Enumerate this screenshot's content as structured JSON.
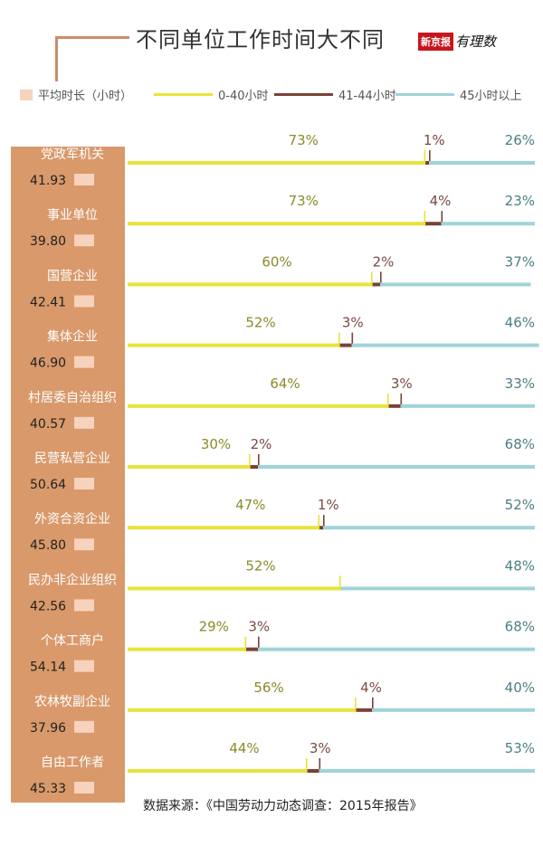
{
  "header": {
    "title": "不同单位工作时间大不同",
    "brand_red": "新京报",
    "brand_script": "有理数"
  },
  "legend": {
    "avg": "平均时长（小时）",
    "s1": "0-40小时",
    "s2": "41-44小时",
    "s3": "45小时以上"
  },
  "colors": {
    "s1": "#e8e33a",
    "s2": "#7a4136",
    "s3": "#9fd3d8",
    "sidebar": "#d9996b",
    "avg_box": "#f7d2bc",
    "text_s1": "#8b8a2a",
    "text_s2": "#7a4a45",
    "text_s3": "#4c7f82"
  },
  "chart_data": {
    "type": "bar",
    "orientation": "horizontal",
    "stacked": true,
    "title": "不同单位工作时间大不同",
    "categories": [
      "党政军机关",
      "事业单位",
      "国营企业",
      "集体企业",
      "村居委自治组织",
      "民营私营企业",
      "外资合资企业",
      "民办非企业组织",
      "个体工商户",
      "农林牧副企业",
      "自由工作者"
    ],
    "average_hours": [
      "41.93",
      "39.80",
      "42.41",
      "46.90",
      "40.57",
      "50.64",
      "45.80",
      "42.56",
      "54.14",
      "37.96",
      "45.33"
    ],
    "series": [
      {
        "name": "0-40小时",
        "values": [
          73,
          73,
          60,
          52,
          64,
          30,
          47,
          52,
          29,
          56,
          44
        ],
        "labels": [
          "73%",
          "73%",
          "60%",
          "52%",
          "64%",
          "30%",
          "47%",
          "52%",
          "29%",
          "56%",
          "44%"
        ]
      },
      {
        "name": "41-44小时",
        "values": [
          1,
          4,
          2,
          3,
          3,
          2,
          1,
          0,
          3,
          4,
          3
        ],
        "labels": [
          "1%",
          "4%",
          "2%",
          "3%",
          "3%",
          "2%",
          "1%",
          "",
          "3%",
          "4%",
          "3%"
        ]
      },
      {
        "name": "45小时以上",
        "values": [
          26,
          23,
          37,
          46,
          33,
          68,
          52,
          48,
          68,
          40,
          53
        ],
        "labels": [
          "26%",
          "23%",
          "37%",
          "46%",
          "33%",
          "68%",
          "52%",
          "48%",
          "68%",
          "40%",
          "53%"
        ]
      }
    ],
    "xlim": [
      0,
      100
    ],
    "unit": "%"
  },
  "footer": {
    "source": "数据来源：《中国劳动力动态调查：2015年报告》"
  }
}
